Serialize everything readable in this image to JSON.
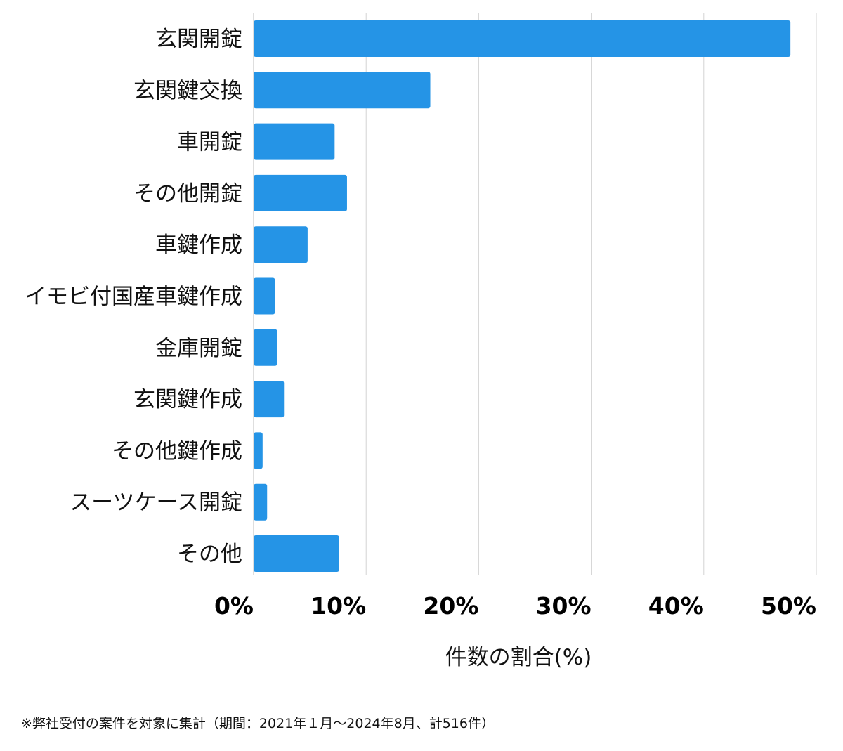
{
  "chart_data": {
    "type": "bar",
    "orientation": "horizontal",
    "categories": [
      "玄関開錠",
      "玄関鍵交換",
      "車開錠",
      "その他開錠",
      "車鍵作成",
      "イモビ付国産車鍵作成",
      "金庫開錠",
      "玄関鍵作成",
      "その他鍵作成",
      "スーツケース開錠",
      "その他"
    ],
    "values": [
      47.7,
      15.7,
      7.2,
      8.3,
      4.8,
      1.9,
      2.1,
      2.7,
      0.8,
      1.2,
      7.6
    ],
    "xlim": [
      0,
      50
    ],
    "xticks": [
      0,
      10,
      20,
      30,
      40,
      50
    ],
    "tick_labels": [
      "0%",
      "10%",
      "20%",
      "30%",
      "40%",
      "50%"
    ],
    "xlabel": "件数の割合(%)",
    "ylabel": "",
    "grid": "vertical",
    "bar_color": "#2594e6"
  },
  "footnote": "※弊社受付の案件を対象に集計（期間：2021年１月〜2024年8月、計516件）"
}
